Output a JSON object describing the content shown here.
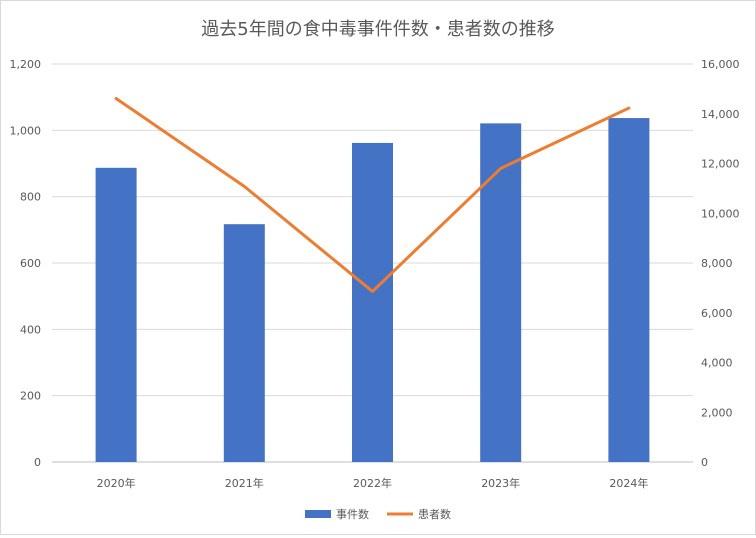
{
  "chart_data": {
    "type": "bar+line",
    "title": "過去5年間の食中毒事件件数・患者数の推移",
    "categories": [
      "2020年",
      "2021年",
      "2022年",
      "2023年",
      "2024年"
    ],
    "series": [
      {
        "name": "事件数",
        "type": "bar",
        "axis": "left",
        "color": "#4472c4",
        "values": [
          887,
          717,
          962,
          1021,
          1037
        ]
      },
      {
        "name": "患者数",
        "type": "line",
        "axis": "right",
        "color": "#ed7d31",
        "values": [
          14613,
          11080,
          6856,
          11803,
          14229
        ]
      }
    ],
    "y_left": {
      "min": 0,
      "max": 1200,
      "step": 200,
      "ticks": [
        "0",
        "200",
        "400",
        "600",
        "800",
        "1,000",
        "1,200"
      ]
    },
    "y_right": {
      "min": 0,
      "max": 16000,
      "step": 2000,
      "ticks": [
        "0",
        "2,000",
        "4,000",
        "6,000",
        "8,000",
        "10,000",
        "12,000",
        "14,000",
        "16,000"
      ]
    },
    "grid": true,
    "legend_position": "bottom"
  }
}
